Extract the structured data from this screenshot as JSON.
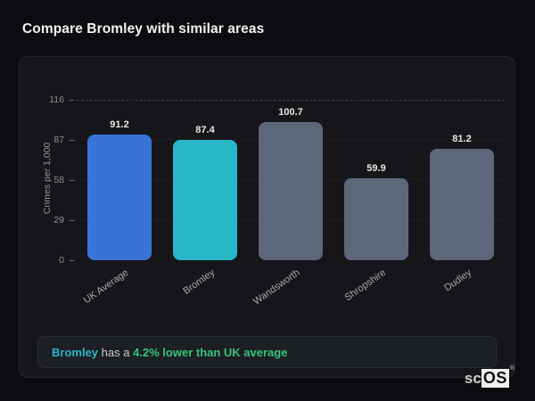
{
  "page": {
    "title": "Compare Bromley with similar areas"
  },
  "chart_data": {
    "type": "bar",
    "title": "",
    "xlabel": "",
    "ylabel": "Crimes per 1,000",
    "categories": [
      "UK Average",
      "Bromley",
      "Wandsworth",
      "Shropshire",
      "Dudley"
    ],
    "values": [
      91.2,
      87.4,
      100.7,
      59.9,
      81.2
    ],
    "bar_colors": [
      "#3a73d8",
      "#27b7c6",
      "#5c6879",
      "#5c6879",
      "#5c6879"
    ],
    "yticks": [
      0,
      29,
      58,
      87,
      116
    ],
    "ylim": [
      0,
      116
    ],
    "grid": "dashed top gridline at 116, faint lines at other ticks",
    "legend_position": "none",
    "value_labels": "above bars, bold",
    "xtick_rotation_deg": -35
  },
  "callout": {
    "subject": "Bromley",
    "mid": " has a ",
    "highlight": "4.2% lower than UK average",
    "subject_color": "#2bb8c7",
    "highlight_color": "#35c576"
  },
  "watermark": {
    "prefix": "sc",
    "boxed": "OS",
    "registered": "®"
  }
}
